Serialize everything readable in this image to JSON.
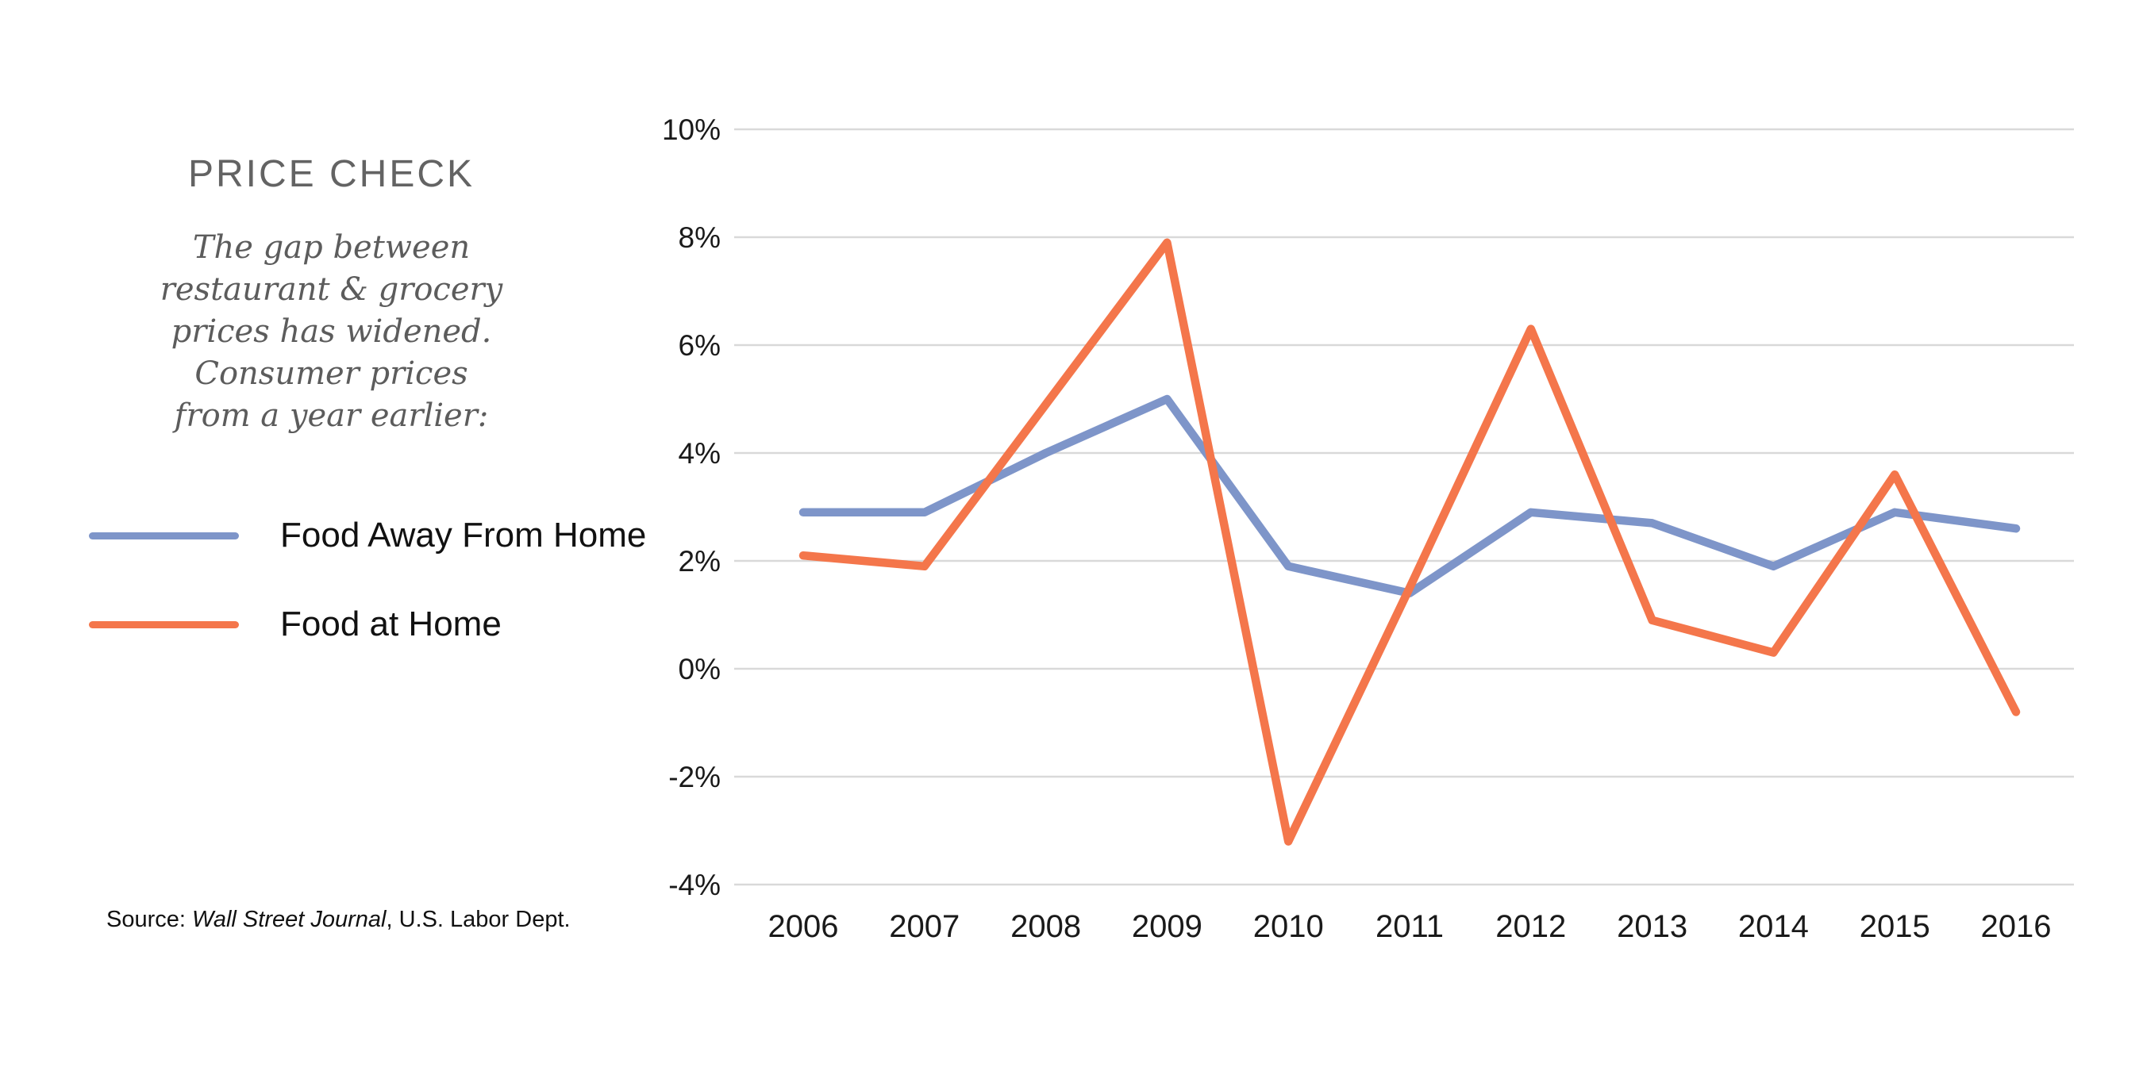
{
  "chart_data": {
    "type": "line",
    "title": "PRICE CHECK",
    "subtitle_lines": [
      "The gap between",
      "restaurant & grocery",
      "prices has widened.",
      "Consumer prices",
      "from a year earlier:"
    ],
    "source": {
      "prefix": "Source: ",
      "italic": "Wall Street Journal",
      "suffix": ", U.S. Labor Dept."
    },
    "x_labels": [
      "2006",
      "2007",
      "2008",
      "2009",
      "2010",
      "2011",
      "2012",
      "2013",
      "2014",
      "2015",
      "2016"
    ],
    "series": [
      {
        "name": "Food Away From Home",
        "color": "#7E95C9",
        "values": [
          2.9,
          2.9,
          4.0,
          5.0,
          1.9,
          1.4,
          2.9,
          2.7,
          1.9,
          2.9,
          2.6
        ]
      },
      {
        "name": "Food at Home",
        "color": "#F4764B",
        "values": [
          2.1,
          1.9,
          4.9,
          7.9,
          -3.2,
          1.5,
          6.3,
          0.9,
          0.3,
          3.6,
          -0.8
        ]
      }
    ],
    "y_axis": {
      "min": -4,
      "max": 10,
      "step": 2,
      "suffix": "%"
    },
    "grid": {
      "horizontal": true,
      "vertical": false,
      "color": "#d9d9d9"
    },
    "legend_position": "left",
    "text_colors": {
      "title": "#636363",
      "subtitle": "#5c5c5c",
      "axis": "#1a1a1a"
    }
  }
}
